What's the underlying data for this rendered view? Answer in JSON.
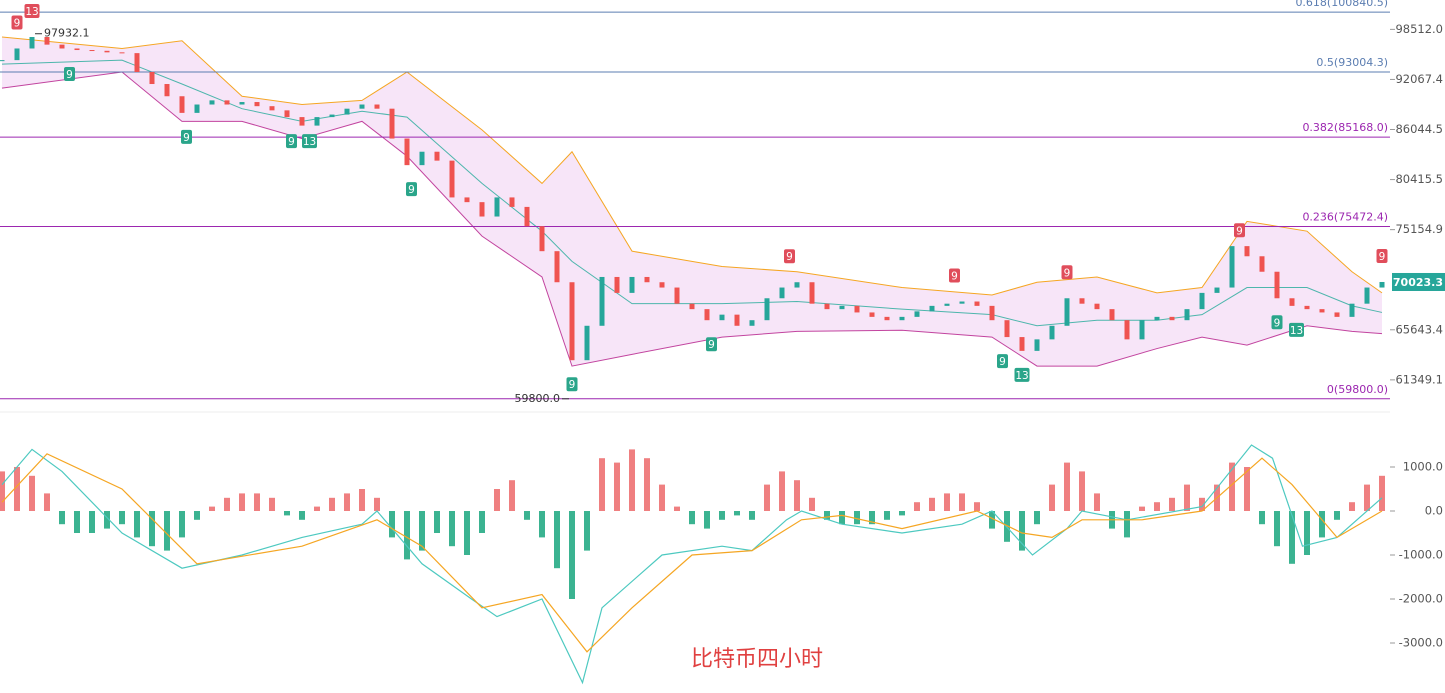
{
  "chart_data": [
    {
      "type": "candlestick",
      "log_scale": true,
      "ylim": [
        59300,
        102500
      ],
      "up_color": "#26a69a",
      "down_color": "#ef5350",
      "yticks": [
        {
          "value": 98512.0,
          "label": "98512.0"
        },
        {
          "value": 92067.4,
          "label": "92067.4"
        },
        {
          "value": 86044.5,
          "label": "86044.5"
        },
        {
          "value": 80415.5,
          "label": "80415.5"
        },
        {
          "value": 75154.9,
          "label": "75154.9"
        },
        {
          "value": 65643.4,
          "label": "65643.4"
        },
        {
          "value": 61349.1,
          "label": "61349.1"
        }
      ],
      "last_price": 70023.3,
      "last_price_color": "#26a69a",
      "close": [
        94500,
        96000,
        97500,
        96500,
        96000,
        95800,
        95700,
        95500,
        95400,
        93000,
        91500,
        90000,
        88000,
        89000,
        89500,
        89000,
        89300,
        88800,
        88300,
        87500,
        86500,
        87500,
        87800,
        88500,
        89000,
        88500,
        85000,
        82000,
        83500,
        82500,
        78500,
        78000,
        76500,
        78500,
        77500,
        75500,
        73000,
        70000,
        63000,
        66000,
        70500,
        69000,
        70500,
        70000,
        69500,
        68000,
        67500,
        66500,
        67000,
        66000,
        66500,
        68500,
        69500,
        70000,
        68000,
        67500,
        67800,
        67200,
        66800,
        66500,
        66800,
        67300,
        67800,
        68000,
        68200,
        67800,
        66500,
        65000,
        63800,
        64800,
        66000,
        68500,
        68000,
        67500,
        66500,
        64800,
        66500,
        66800,
        66500,
        67500,
        69000,
        69500,
        73500,
        72500,
        71000,
        68500,
        67800,
        67500,
        67200,
        66800,
        68000,
        69500,
        70023.3
      ],
      "bollinger": {
        "x": [
          0,
          8,
          12,
          16,
          20,
          24,
          27,
          32,
          36,
          38,
          42,
          48,
          53,
          60,
          66,
          69,
          73,
          77,
          80,
          83,
          87,
          90,
          92
        ],
        "upper": [
          97500,
          96000,
          97000,
          90000,
          89000,
          89500,
          93000,
          86000,
          80000,
          83500,
          73000,
          71500,
          71000,
          69500,
          68800,
          70000,
          70500,
          69000,
          69500,
          76000,
          75000,
          71000,
          69000
        ],
        "middle": [
          94000,
          94500,
          91500,
          88500,
          87000,
          88200,
          87500,
          80000,
          75000,
          72000,
          68000,
          68000,
          68200,
          67500,
          67000,
          66000,
          66500,
          66500,
          67000,
          69500,
          69500,
          67800,
          67200
        ],
        "lower": [
          91000,
          93000,
          87000,
          87000,
          85000,
          87000,
          83000,
          74500,
          70500,
          62500,
          63500,
          65000,
          65500,
          65600,
          65000,
          62500,
          62500,
          64000,
          65000,
          64300,
          66000,
          65500,
          65300
        ],
        "upper_color": "#f5a623",
        "middle_color": "#4db6ac",
        "lower_color": "#c2449f",
        "fill_color": "#f1d3f3"
      },
      "fib_levels": [
        {
          "value": 100840.5,
          "label": "0.618(100840.5)",
          "color": "#5b7db1"
        },
        {
          "value": 93004.3,
          "label": "0.5(93004.3)",
          "color": "#5b7db1"
        },
        {
          "value": 85168.0,
          "label": "0.382(85168.0)",
          "color": "#9c27b0"
        },
        {
          "value": 75472.4,
          "label": "0.236(75472.4)",
          "color": "#9c27b0"
        },
        {
          "value": 59800.0,
          "label": "0(59800.0)",
          "color": "#9c27b0"
        }
      ],
      "annotations": [
        {
          "x": 2,
          "value": 97932.1,
          "label": "97932.1",
          "side": "right"
        },
        {
          "x": 38,
          "value": 59800.0,
          "label": "59800.0",
          "side": "left"
        }
      ],
      "markers": [
        {
          "x": 1,
          "label": "9",
          "side": "above"
        },
        {
          "x": 2,
          "label": "13",
          "side": "above"
        },
        {
          "x": 52.5,
          "label": "9",
          "side": "above"
        },
        {
          "x": 63.5,
          "label": "9",
          "side": "above"
        },
        {
          "x": 71,
          "label": "9",
          "side": "above"
        },
        {
          "x": 82.5,
          "label": "9",
          "side": "above"
        },
        {
          "x": 92,
          "label": "9",
          "side": "above"
        },
        {
          "x": 4.5,
          "label": "9",
          "side": "below"
        },
        {
          "x": 12.3,
          "label": "9",
          "side": "below"
        },
        {
          "x": 19.3,
          "label": "9",
          "side": "below"
        },
        {
          "x": 20.5,
          "label": "13",
          "side": "below"
        },
        {
          "x": 27.3,
          "label": "9",
          "side": "below"
        },
        {
          "x": 38,
          "label": "9",
          "side": "below"
        },
        {
          "x": 47.3,
          "label": "9",
          "side": "below"
        },
        {
          "x": 66.7,
          "label": "9",
          "side": "below"
        },
        {
          "x": 68,
          "label": "13",
          "side": "below"
        },
        {
          "x": 85,
          "label": "9",
          "side": "below"
        },
        {
          "x": 86.3,
          "label": "13",
          "side": "below"
        }
      ],
      "above_color": "#e04d5b",
      "below_color": "#2aa58a"
    },
    {
      "type": "macd",
      "title": "比特币四小时",
      "title_color": "#e04040",
      "ylim": [
        -4000,
        2000
      ],
      "yticks": [
        {
          "value": 1000,
          "label": "1000.0"
        },
        {
          "value": 0,
          "label": "0.0"
        },
        {
          "value": -1000,
          "label": "-1000.0"
        },
        {
          "value": -2000,
          "label": "-2000.0"
        },
        {
          "value": -3000,
          "label": "-3000.0"
        }
      ],
      "positive_color": "#ef7f80",
      "negative_color": "#3bb391",
      "histogram": [
        900,
        1000,
        800,
        400,
        -300,
        -500,
        -500,
        -400,
        -300,
        -600,
        -800,
        -900,
        -600,
        -200,
        100,
        300,
        400,
        400,
        300,
        -100,
        -200,
        100,
        300,
        400,
        500,
        300,
        -600,
        -1100,
        -900,
        -500,
        -800,
        -1000,
        -500,
        500,
        700,
        -200,
        -600,
        -1300,
        -2000,
        -900,
        1200,
        1100,
        1400,
        1200,
        600,
        100,
        -300,
        -400,
        -200,
        -100,
        -200,
        600,
        900,
        700,
        300,
        -200,
        -300,
        -300,
        -300,
        -200,
        -100,
        200,
        300,
        400,
        400,
        200,
        -400,
        -700,
        -900,
        -300,
        600,
        1100,
        900,
        400,
        -400,
        -600,
        100,
        200,
        300,
        600,
        300,
        600,
        1100,
        1000,
        -300,
        -800,
        -1200,
        -1000,
        -600,
        -200,
        200,
        600,
        800
      ],
      "lines": [
        {
          "color": "#4dc9c0",
          "x": [
            0,
            2,
            4,
            8,
            12,
            16,
            20,
            24,
            25,
            28,
            31.3,
            33,
            36,
            38.7,
            40,
            44,
            48,
            50,
            52.3,
            53.3,
            56,
            60,
            64,
            66,
            68.7,
            71,
            72,
            75,
            80,
            83.3,
            84.7,
            86.7,
            89,
            92
          ],
          "values": [
            600,
            1400,
            900,
            -500,
            -1300,
            -1000,
            -600,
            -300,
            0,
            -1200,
            -2000,
            -2400,
            -2000,
            -3900,
            -2200,
            -1000,
            -800,
            -900,
            -200,
            0,
            -300,
            -500,
            -300,
            0,
            -1000,
            -400,
            0,
            -200,
            100,
            1500,
            1200,
            -800,
            -600,
            300
          ]
        },
        {
          "color": "#f5a623",
          "x": [
            0,
            3,
            8,
            13,
            20,
            25,
            28,
            32,
            36,
            39,
            42,
            46,
            50,
            53.3,
            56,
            60,
            65,
            68,
            70,
            72,
            76,
            80,
            84,
            86,
            89,
            92
          ],
          "values": [
            200,
            1300,
            500,
            -1200,
            -800,
            -200,
            -800,
            -2200,
            -1900,
            -3200,
            -2200,
            -1000,
            -900,
            -200,
            -100,
            -400,
            0,
            -500,
            -600,
            -200,
            -200,
            0,
            1200,
            600,
            -600,
            0
          ]
        }
      ]
    }
  ]
}
